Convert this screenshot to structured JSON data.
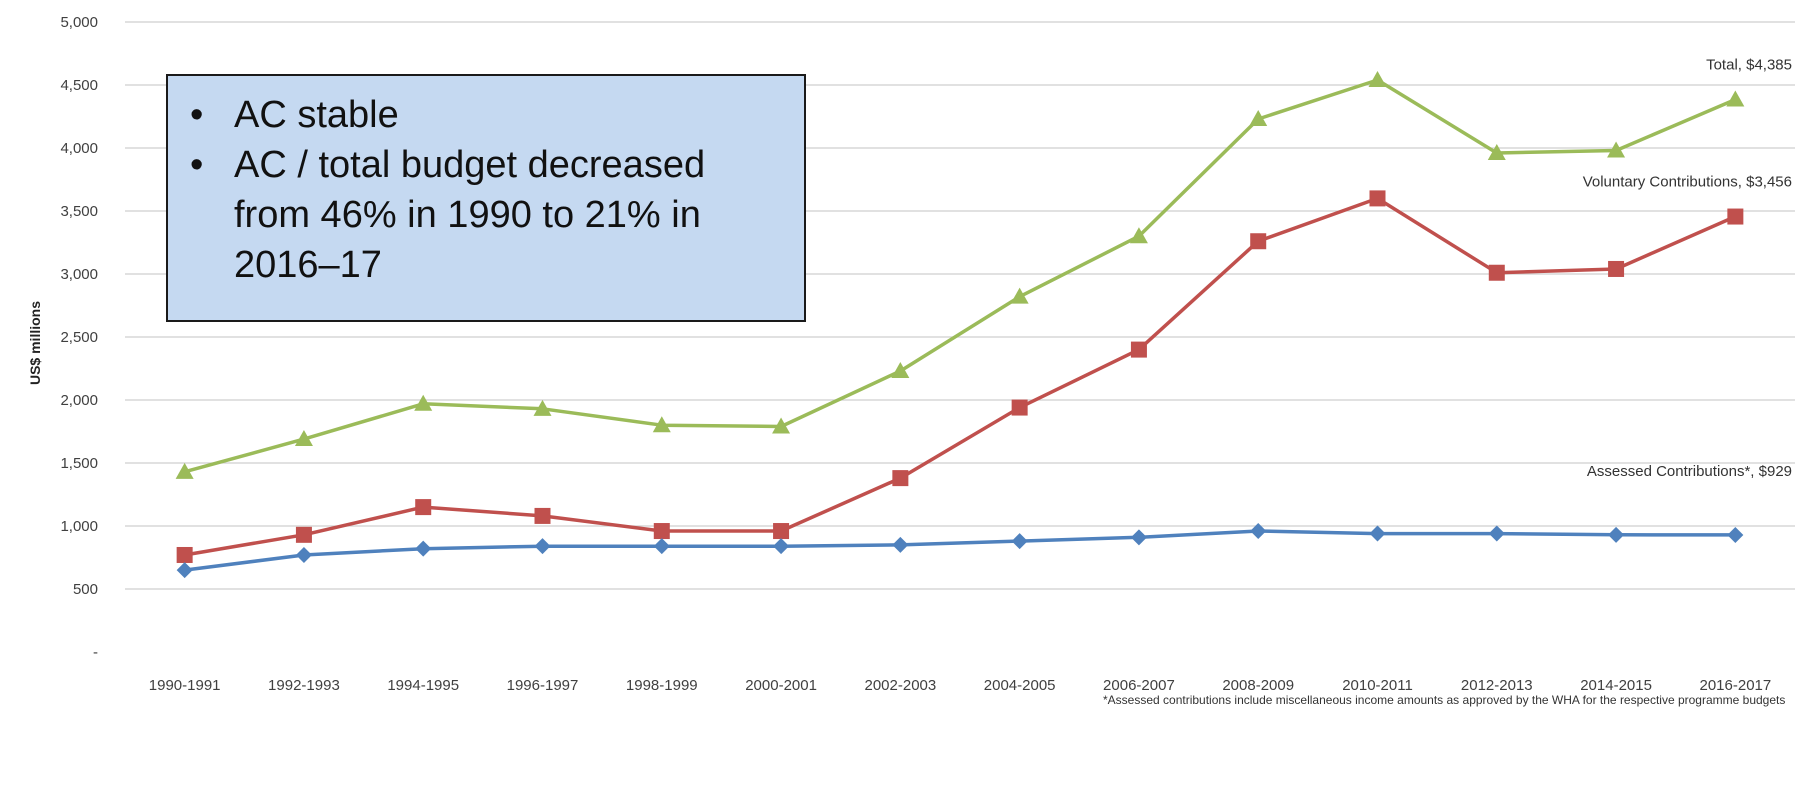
{
  "chart_data": {
    "type": "line",
    "title": "",
    "xlabel": "",
    "ylabel": "US$ millions",
    "categories": [
      "1990-1991",
      "1992-1993",
      "1994-1995",
      "1996-1997",
      "1998-1999",
      "2000-2001",
      "2002-2003",
      "2004-2005",
      "2006-2007",
      "2008-2009",
      "2010-2011",
      "2012-2013",
      "2014-2015",
      "2016-2017"
    ],
    "ylim": [
      0,
      5000
    ],
    "yticks": [
      {
        "value": 0,
        "label": "-"
      },
      {
        "value": 500,
        "label": "500"
      },
      {
        "value": 1000,
        "label": "1,000"
      },
      {
        "value": 1500,
        "label": "1,500"
      },
      {
        "value": 2000,
        "label": "2,000"
      },
      {
        "value": 2500,
        "label": "2,500"
      },
      {
        "value": 3000,
        "label": "3,000"
      },
      {
        "value": 3500,
        "label": "3,500"
      },
      {
        "value": 4000,
        "label": "4,000"
      },
      {
        "value": 4500,
        "label": "4,500"
      },
      {
        "value": 5000,
        "label": "5,000"
      }
    ],
    "grid": true,
    "series": [
      {
        "key": "total",
        "color": "#9bbb59",
        "marker": "triangle",
        "label": "Total, $4,385",
        "values": [
          1430,
          1690,
          1970,
          1930,
          1800,
          1790,
          2230,
          2820,
          3300,
          4230,
          4540,
          3960,
          3980,
          4385
        ]
      },
      {
        "key": "voluntary",
        "color": "#c0504d",
        "marker": "square",
        "label": "Voluntary Contributions, $3,456",
        "values": [
          770,
          930,
          1150,
          1080,
          960,
          960,
          1380,
          1940,
          2400,
          3260,
          3600,
          3010,
          3040,
          3456
        ]
      },
      {
        "key": "assessed",
        "color": "#4f81bd",
        "marker": "diamond",
        "label": "Assessed Contributions*,  $929",
        "values": [
          650,
          770,
          820,
          840,
          840,
          840,
          850,
          880,
          910,
          960,
          940,
          940,
          930,
          929
        ]
      }
    ]
  },
  "callout": {
    "bullets": [
      "AC stable",
      "AC / total budget decreased from 46% in 1990 to 21% in 2016–17"
    ]
  },
  "footnote": "*Assessed contributions include miscellaneous income amounts as approved by the WHA for the respective programme budgets"
}
